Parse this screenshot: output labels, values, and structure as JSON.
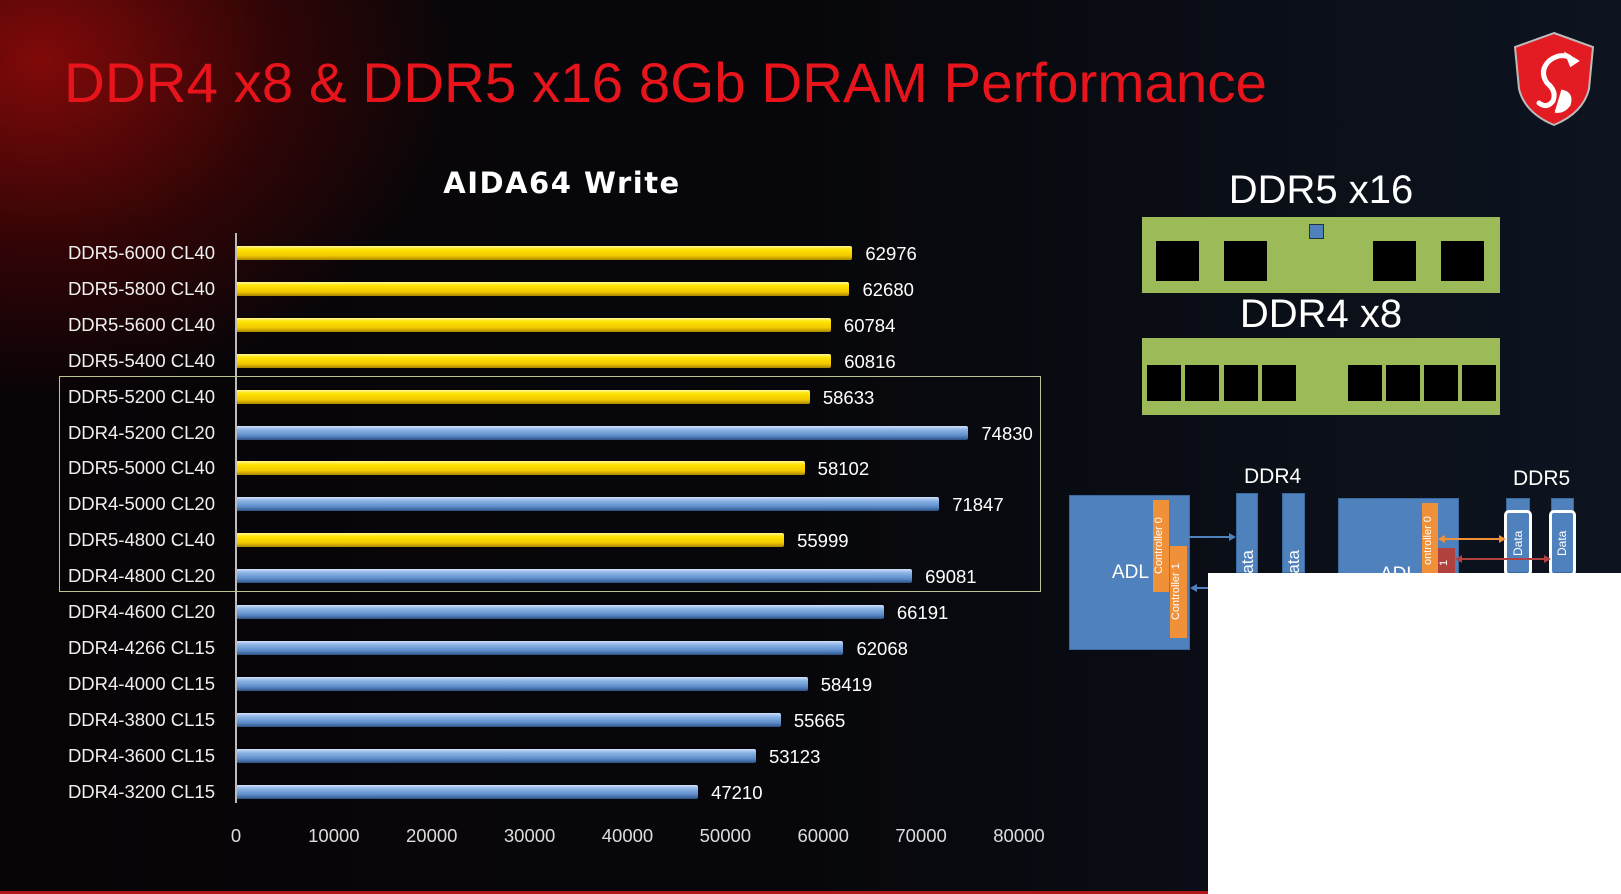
{
  "header": {
    "title": "DDR4 x8 & DDR5 x16  8Gb DRAM Performance",
    "logo": "MSI dragon shield"
  },
  "chart_data": {
    "type": "bar",
    "orientation": "horizontal",
    "title": "AIDA64 Write",
    "xlabel": "",
    "ylabel": "",
    "xlim": [
      0,
      80000
    ],
    "xticks": [
      "0",
      "10000",
      "20000",
      "30000",
      "40000",
      "50000",
      "60000",
      "70000",
      "80000"
    ],
    "categories": [
      "DDR5-6000 CL40",
      "DDR5-5800 CL40",
      "DDR5-5600 CL40",
      "DDR5-5400 CL40",
      "DDR5-5200 CL40",
      "DDR4-5200 CL20",
      "DDR5-5000 CL40",
      "DDR4-5000 CL20",
      "DDR5-4800 CL40",
      "DDR4-4800 CL20",
      "DDR4-4600 CL20",
      "DDR4-4266 CL15",
      "DDR4-4000 CL15",
      "DDR4-3800 CL15",
      "DDR4-3600 CL15",
      "DDR4-3200 CL15"
    ],
    "values": [
      62976,
      62680,
      60784,
      60816,
      58633,
      74830,
      58102,
      71847,
      55999,
      69081,
      66191,
      62068,
      58419,
      55665,
      53123,
      47210
    ],
    "colors": {
      "DDR5": "#ffe400",
      "DDR4": "#5b8bc8"
    },
    "highlighted_range": [
      "DDR5-5200 CL40",
      "DDR4-4800 CL20"
    ],
    "grid": false,
    "legend": "none"
  },
  "modules": {
    "ddr5_label": "DDR5 x16",
    "ddr4_label": "DDR4 x8"
  },
  "diagram": {
    "ddr4_label": "DDR4",
    "ddr5_label": "DDR5",
    "adl": "ADL",
    "adl2": "ADL",
    "controller0": "Controller 0",
    "controller1": "Controller 1",
    "controller0_b": "ontroller 0",
    "controller1_b": "1",
    "data": "Data",
    "data_partial": "ata"
  },
  "colors": {
    "title": "#e8141c",
    "highlight_box": "#b9c58c",
    "module": "#9cbb58"
  }
}
